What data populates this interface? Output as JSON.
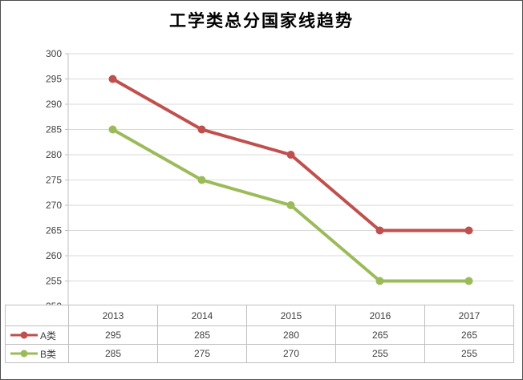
{
  "chart_data": {
    "type": "line",
    "title": "工学类总分国家线趋势",
    "categories": [
      "2013",
      "2014",
      "2015",
      "2016",
      "2017"
    ],
    "series": [
      {
        "name": "A类",
        "color": "#c0504d",
        "values": [
          295,
          285,
          280,
          265,
          265
        ]
      },
      {
        "name": "B类",
        "color": "#9bbb59",
        "values": [
          285,
          275,
          270,
          255,
          255
        ]
      }
    ],
    "xlabel": "",
    "ylabel": "",
    "ylim": [
      250,
      300
    ],
    "ytick_step": 5,
    "grid": true,
    "legend_position": "data-table-left",
    "colors": {
      "gridline": "#d9d9d9",
      "axis": "#bfbfbf",
      "table_border": "#bfbfbf",
      "tick_text": "#404040"
    }
  }
}
